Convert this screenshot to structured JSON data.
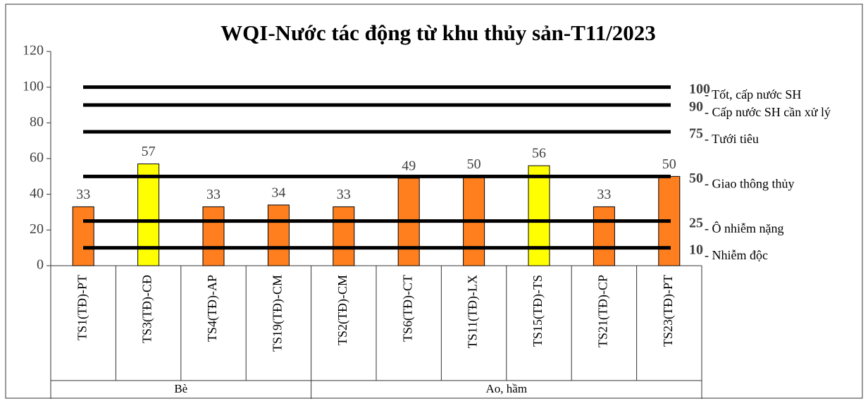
{
  "chart_data": {
    "type": "bar",
    "title": "WQI-Nước tác động từ khu thủy sản-T11/2023",
    "categories": [
      "TS1(TĐ)-PT",
      "TS3(TĐ)-CĐ",
      "TS4(TĐ)-AP",
      "TS19(TĐ)-CM",
      "TS2(TĐ)-CM",
      "TS6(TĐ)-CT",
      "TS11(TĐ)-LX",
      "TS15(TĐ)-TS",
      "TS21(TĐ)-CP",
      "TS23(TĐ)-PT"
    ],
    "groups": [
      "Bè",
      "Bè",
      "Bè",
      "Bè",
      "Ao, hầm",
      "Ao, hầm",
      "Ao, hầm",
      "Ao, hầm",
      "Ao, hầm",
      "Ao, hầm"
    ],
    "values": [
      33,
      57,
      33,
      34,
      33,
      49,
      50,
      56,
      33,
      50
    ],
    "colors": [
      "#ff7f1e",
      "#ffff00",
      "#ff7f1e",
      "#ff7f1e",
      "#ff7f1e",
      "#ff7f1e",
      "#ff7f1e",
      "#ffff00",
      "#ff7f1e",
      "#ff7f1e"
    ],
    "ylim": [
      0,
      120
    ],
    "yticks": [
      0,
      20,
      40,
      60,
      80,
      100,
      120
    ],
    "reference_lines": [
      {
        "value": 100,
        "label": "- Tốt, cấp nước SH"
      },
      {
        "value": 90,
        "label": "- Cấp nước SH cần xử lý"
      },
      {
        "value": 75,
        "label": "- Tưới tiêu"
      },
      {
        "value": 50,
        "label": "- Giao thông thủy"
      },
      {
        "value": 25,
        "label": "- Ô nhiễm nặng"
      },
      {
        "value": 10,
        "label": "- Nhiễm độc"
      }
    ]
  }
}
